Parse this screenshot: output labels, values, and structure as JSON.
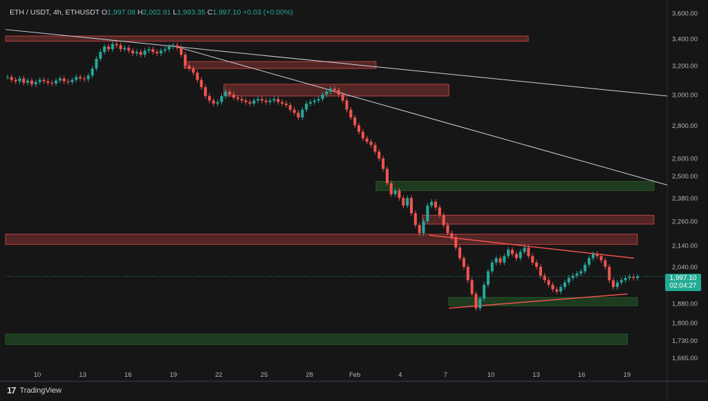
{
  "header": {
    "symbol": "ETH / USDT, 4h, ETHUSDT",
    "o_label": "O",
    "o": "1,997.08",
    "h_label": "H",
    "h": "2,002.91",
    "l_label": "L",
    "l": "1,993.35",
    "c_label": "C",
    "c": "1,997.10",
    "change": "+0.03 (+0.00%)"
  },
  "price_tag": {
    "price": "1,997.10",
    "countdown": "02:04:27"
  },
  "brand": {
    "name": "TradingView",
    "icon": "tradingview-logo-icon"
  },
  "colors": {
    "bg": "#161616",
    "up": "#26a69a",
    "down": "#ef5350",
    "resistance": "#ef5350",
    "support": "#2e7d32",
    "trendline": "#d1d4dc"
  },
  "chart_data": {
    "type": "candlestick",
    "ylim": [
      1620,
      3650
    ],
    "y_scale": "log",
    "y_ticks": [
      "3,600.00",
      "3,400.00",
      "3,200.00",
      "3,000.00",
      "2,800.00",
      "2,600.00",
      "2,500.00",
      "2,380.00",
      "2,260.00",
      "2,140.00",
      "2,040.00",
      "1,880.00",
      "1,800.00",
      "1,730.00",
      "1,665.00"
    ],
    "x_ticks": [
      "10",
      "13",
      "16",
      "19",
      "22",
      "25",
      "28",
      "Feb",
      "4",
      "7",
      "10",
      "13",
      "16",
      "19"
    ],
    "closes": [
      3120,
      3100,
      3090,
      3110,
      3080,
      3095,
      3070,
      3085,
      3100,
      3090,
      3080,
      3075,
      3095,
      3110,
      3090,
      3085,
      3100,
      3120,
      3110,
      3105,
      3130,
      3180,
      3250,
      3300,
      3340,
      3320,
      3360,
      3350,
      3320,
      3330,
      3310,
      3290,
      3300,
      3280,
      3310,
      3320,
      3300,
      3290,
      3310,
      3320,
      3340,
      3350,
      3330,
      3280,
      3200,
      3180,
      3150,
      3100,
      3050,
      2990,
      2960,
      2940,
      2950,
      2990,
      3020,
      3000,
      2980,
      2970,
      2960,
      2950,
      2940,
      2960,
      2970,
      2960,
      2950,
      2960,
      2970,
      2950,
      2940,
      2930,
      2900,
      2880,
      2850,
      2900,
      2940,
      2950,
      2960,
      2970,
      3000,
      3020,
      3040,
      3030,
      3000,
      2960,
      2900,
      2850,
      2800,
      2760,
      2720,
      2700,
      2680,
      2640,
      2600,
      2540,
      2460,
      2400,
      2420,
      2380,
      2340,
      2380,
      2300,
      2240,
      2200,
      2260,
      2340,
      2360,
      2330,
      2290,
      2240,
      2200,
      2180,
      2130,
      2080,
      2040,
      1980,
      1920,
      1860,
      1900,
      1960,
      2020,
      2060,
      2080,
      2060,
      2090,
      2120,
      2100,
      2080,
      2110,
      2130,
      2090,
      2060,
      2040,
      2000,
      1980,
      1960,
      1940,
      1930,
      1950,
      1970,
      1990,
      2000,
      2010,
      2020,
      2050,
      2080,
      2100,
      2090,
      2070,
      2040,
      1980,
      1950,
      1970,
      1980,
      1990,
      1995,
      1990,
      1997
    ],
    "levels": [
      {
        "type": "resistance",
        "low": 3380,
        "high": 3420,
        "x_from": 0,
        "x_to": 0.79
      },
      {
        "type": "resistance",
        "low": 3180,
        "high": 3230,
        "x_from": 0.27,
        "x_to": 0.56
      },
      {
        "type": "resistance",
        "low": 2990,
        "high": 3070,
        "x_from": 0.33,
        "x_to": 0.67
      },
      {
        "type": "support",
        "low": 2420,
        "high": 2470,
        "x_from": 0.56,
        "x_to": 0.98
      },
      {
        "type": "resistance",
        "low": 2245,
        "high": 2290,
        "x_from": 0.63,
        "x_to": 0.98
      },
      {
        "type": "resistance",
        "low": 2145,
        "high": 2195,
        "x_from": 0,
        "x_to": 0.955
      },
      {
        "type": "support",
        "low": 1870,
        "high": 1905,
        "x_from": 0.67,
        "x_to": 0.955
      },
      {
        "type": "support",
        "low": 1715,
        "high": 1755,
        "x_from": 0,
        "x_to": 0.94
      }
    ],
    "trendlines": [
      {
        "p1": [
          0,
          3470
        ],
        "p2": [
          1,
          2990
        ]
      },
      {
        "p1": [
          0.25,
          3350
        ],
        "p2": [
          1,
          2450
        ]
      }
    ],
    "triangle": {
      "upper": [
        [
          0.64,
          2190
        ],
        [
          0.95,
          2080
        ]
      ],
      "lower": [
        [
          0.67,
          1860
        ],
        [
          0.94,
          1920
        ]
      ]
    }
  }
}
